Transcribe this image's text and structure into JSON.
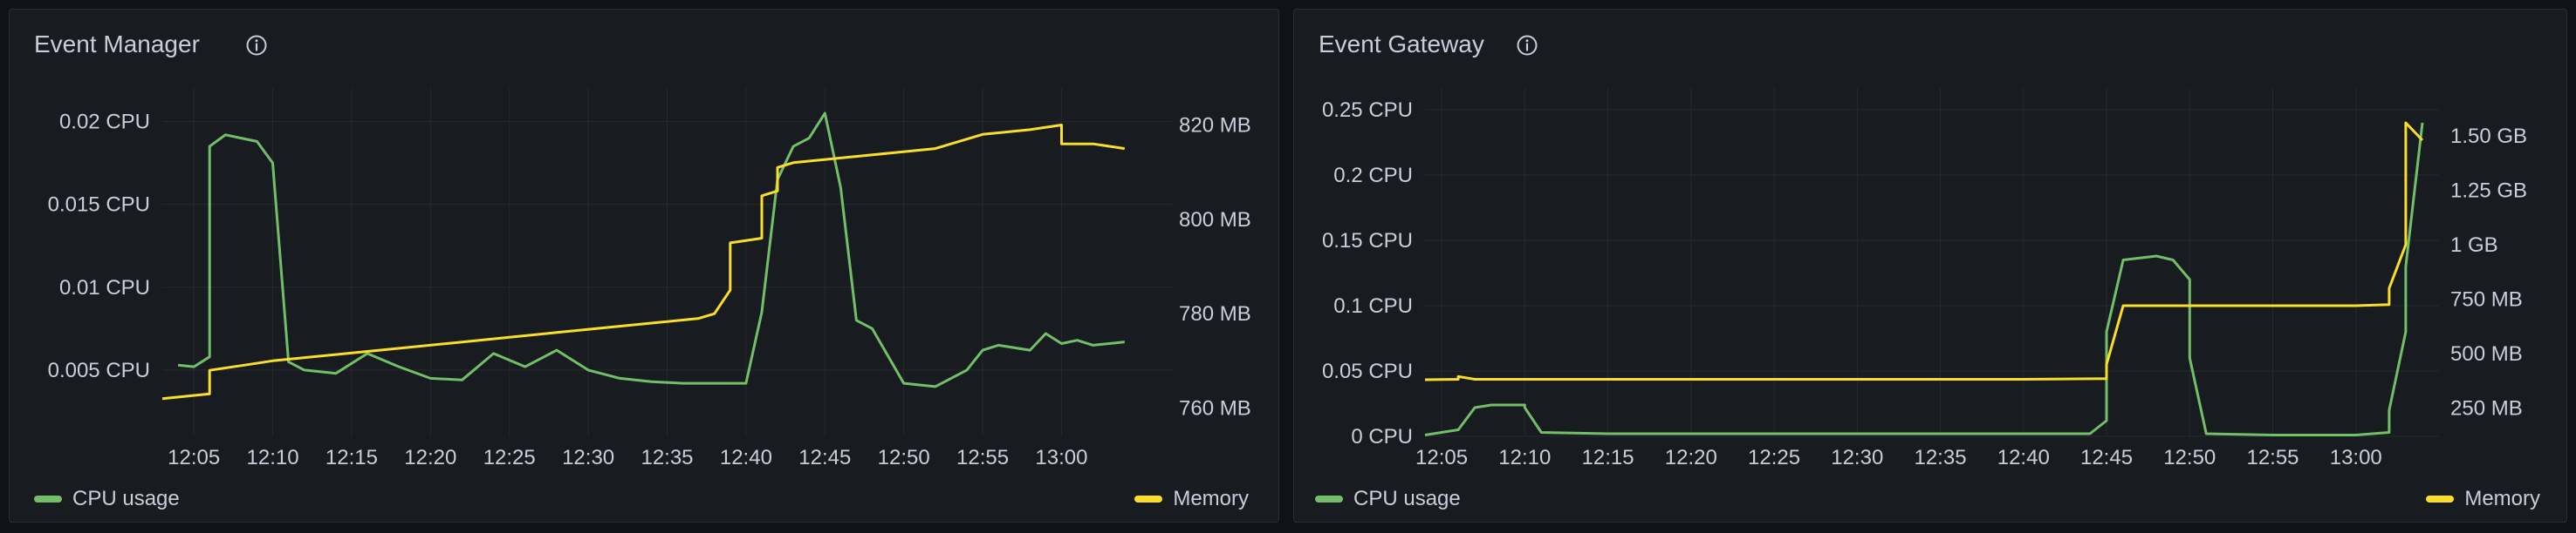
{
  "panels": [
    {
      "title": "Event Manager",
      "legend": {
        "left_label": "CPU usage",
        "right_label": "Memory"
      },
      "colors": {
        "cpu": "#73bf69",
        "memory": "#fade2a"
      },
      "chart_data": {
        "type": "line",
        "x_ticks": [
          "12:05",
          "12:10",
          "12:15",
          "12:20",
          "12:25",
          "12:30",
          "12:35",
          "12:40",
          "12:45",
          "12:50",
          "12:55",
          "13:00"
        ],
        "x_range": [
          "12:03",
          "13:07"
        ],
        "y_left": {
          "ticks": [
            "0.005 CPU",
            "0.01 CPU",
            "0.015 CPU",
            "0.02 CPU"
          ],
          "tick_values": [
            0.005,
            0.01,
            0.015,
            0.02
          ],
          "range": [
            0.001,
            0.0215
          ]
        },
        "y_right": {
          "ticks": [
            "760 MB",
            "780 MB",
            "800 MB",
            "820 MB"
          ],
          "tick_values": [
            760,
            780,
            800,
            820
          ],
          "range": [
            754,
            826
          ]
        },
        "series": [
          {
            "name": "CPU usage",
            "axis": "left",
            "x": [
              "12:04",
              "12:05",
              "12:06",
              "12:06",
              "12:07",
              "12:08",
              "12:09",
              "12:10",
              "12:11",
              "12:12",
              "12:14",
              "12:16",
              "12:18",
              "12:20",
              "12:22",
              "12:24",
              "12:26",
              "12:28",
              "12:30",
              "12:32",
              "12:34",
              "12:36",
              "12:38",
              "12:40",
              "12:41",
              "12:42",
              "12:43",
              "12:44",
              "12:45",
              "12:46",
              "12:47",
              "12:48",
              "12:50",
              "12:52",
              "12:54",
              "12:55",
              "12:56",
              "12:58",
              "12:59",
              "13:00",
              "13:01",
              "13:02",
              "13:04"
            ],
            "y": [
              0.0053,
              0.0052,
              0.0058,
              0.0185,
              0.0192,
              0.019,
              0.0188,
              0.0175,
              0.0055,
              0.005,
              0.0048,
              0.006,
              0.0052,
              0.0045,
              0.0044,
              0.006,
              0.0052,
              0.0062,
              0.005,
              0.0045,
              0.0043,
              0.0042,
              0.0042,
              0.0042,
              0.0085,
              0.0165,
              0.0185,
              0.019,
              0.0205,
              0.016,
              0.008,
              0.0075,
              0.0042,
              0.004,
              0.005,
              0.0062,
              0.0065,
              0.0062,
              0.0072,
              0.0066,
              0.0068,
              0.0065,
              0.0067
            ]
          },
          {
            "name": "Memory",
            "axis": "right",
            "x": [
              "12:03",
              "12:06",
              "12:06",
              "12:08",
              "12:10",
              "12:13",
              "12:16",
              "12:19",
              "12:22",
              "12:25",
              "12:28",
              "12:31",
              "12:34",
              "12:37",
              "12:38",
              "12:39",
              "12:39",
              "12:41",
              "12:41",
              "12:42",
              "12:42",
              "12:43",
              "12:46",
              "12:49",
              "12:52",
              "12:55",
              "12:58",
              "13:00",
              "13:00",
              "13:02",
              "13:04"
            ],
            "y": [
              762,
              763,
              768,
              769,
              770,
              771,
              772,
              773,
              774,
              775,
              776,
              777,
              778,
              779,
              780,
              785,
              795,
              796,
              805,
              806,
              811,
              812,
              813,
              814,
              815,
              818,
              819,
              820,
              816,
              816,
              815
            ]
          }
        ]
      }
    },
    {
      "title": "Event Gateway",
      "legend": {
        "left_label": "CPU usage",
        "right_label": "Memory"
      },
      "colors": {
        "cpu": "#73bf69",
        "memory": "#fade2a"
      },
      "chart_data": {
        "type": "line",
        "x_ticks": [
          "12:05",
          "12:10",
          "12:15",
          "12:20",
          "12:25",
          "12:30",
          "12:35",
          "12:40",
          "12:45",
          "12:50",
          "12:55",
          "13:00"
        ],
        "x_range": [
          "12:04",
          "13:05"
        ],
        "y_left": {
          "ticks": [
            "0 CPU",
            "0.05 CPU",
            "0.1 CPU",
            "0.15 CPU",
            "0.2 CPU",
            "0.25 CPU"
          ],
          "tick_values": [
            0,
            0.05,
            0.1,
            0.15,
            0.2,
            0.25
          ],
          "range": [
            0,
            0.26
          ]
        },
        "y_right": {
          "ticks": [
            "250 MB",
            "500 MB",
            "750 MB",
            "1 GB",
            "1.25 GB",
            "1.50 GB"
          ],
          "tick_values": [
            250,
            500,
            750,
            1000,
            1250,
            1500
          ],
          "range": [
            120,
            1680
          ]
        },
        "series": [
          {
            "name": "CPU usage",
            "axis": "left",
            "x": [
              "12:04",
              "12:06",
              "12:07",
              "12:08",
              "12:10",
              "12:10",
              "12:11",
              "12:15",
              "12:20",
              "12:25",
              "12:30",
              "12:35",
              "12:40",
              "12:44",
              "12:45",
              "12:45",
              "12:46",
              "12:48",
              "12:49",
              "12:50",
              "12:50",
              "12:51",
              "12:55",
              "13:00",
              "13:02",
              "13:02",
              "13:03",
              "13:03",
              "13:04"
            ],
            "y": [
              0.001,
              0.005,
              0.022,
              0.024,
              0.024,
              0.022,
              0.003,
              0.002,
              0.002,
              0.002,
              0.002,
              0.002,
              0.002,
              0.002,
              0.012,
              0.08,
              0.135,
              0.138,
              0.135,
              0.12,
              0.06,
              0.002,
              0.001,
              0.001,
              0.003,
              0.02,
              0.08,
              0.13,
              0.24
            ]
          },
          {
            "name": "Memory",
            "axis": "right",
            "x": [
              "12:04",
              "12:06",
              "12:06",
              "12:07",
              "12:15",
              "12:25",
              "12:35",
              "12:40",
              "12:45",
              "12:45",
              "12:46",
              "12:50",
              "13:00",
              "13:02",
              "13:02",
              "13:03",
              "13:03",
              "13:04"
            ],
            "y": [
              380,
              382,
              395,
              382,
              382,
              382,
              382,
              382,
              385,
              450,
              720,
              720,
              720,
              725,
              800,
              1000,
              1560,
              1480
            ]
          }
        ]
      }
    }
  ]
}
